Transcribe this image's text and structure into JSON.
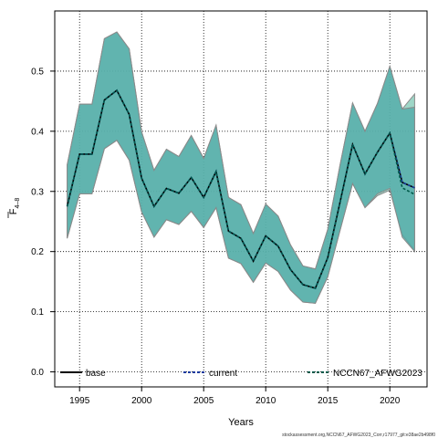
{
  "chart_data": {
    "type": "line",
    "title": "",
    "xlabel": "Years",
    "ylabel_main": "F",
    "ylabel_sub": "4–8",
    "xlim": [
      1993,
      2023
    ],
    "ylim": [
      -0.025,
      0.6
    ],
    "xticks": [
      1995,
      2000,
      2005,
      2010,
      2015,
      2020
    ],
    "yticks": [
      0.0,
      0.1,
      0.2,
      0.3,
      0.4,
      0.5
    ],
    "xtick_labels": [
      "1995",
      "2000",
      "2005",
      "2010",
      "2015",
      "2020"
    ],
    "ytick_labels": [
      "0.0",
      "0.1",
      "0.2",
      "0.3",
      "0.4",
      "0.5"
    ],
    "grid": true,
    "legend_position": "bottom",
    "x": [
      1994,
      1995,
      1996,
      1997,
      1998,
      1999,
      2000,
      2001,
      2002,
      2003,
      2004,
      2005,
      2006,
      2007,
      2008,
      2009,
      2010,
      2011,
      2012,
      2013,
      2014,
      2015,
      2016,
      2017,
      2018,
      2019,
      2020,
      2021,
      2022
    ],
    "series": [
      {
        "name": "base",
        "style": "solid",
        "color": "#000000",
        "values": [
          0.275,
          0.362,
          0.362,
          0.452,
          0.468,
          0.428,
          0.322,
          0.275,
          0.305,
          0.297,
          0.323,
          0.29,
          0.333,
          0.234,
          0.222,
          0.184,
          0.226,
          0.209,
          0.17,
          0.145,
          0.139,
          0.19,
          0.283,
          0.378,
          0.329,
          0.365,
          0.397,
          0.315,
          0.306
        ],
        "lower": [
          0.222,
          0.296,
          0.296,
          0.371,
          0.385,
          0.352,
          0.266,
          0.224,
          0.253,
          0.245,
          0.267,
          0.24,
          0.273,
          0.189,
          0.18,
          0.149,
          0.181,
          0.167,
          0.136,
          0.116,
          0.114,
          0.158,
          0.236,
          0.313,
          0.273,
          0.296,
          0.305,
          0.224,
          0.2
        ],
        "upper": [
          0.344,
          0.445,
          0.445,
          0.554,
          0.565,
          0.537,
          0.399,
          0.335,
          0.37,
          0.358,
          0.393,
          0.355,
          0.41,
          0.29,
          0.278,
          0.23,
          0.279,
          0.259,
          0.211,
          0.176,
          0.171,
          0.237,
          0.345,
          0.447,
          0.4,
          0.446,
          0.508,
          0.437,
          0.44
        ]
      },
      {
        "name": "current",
        "style": "dashed",
        "color": "#1a3a9e",
        "values": [
          0.275,
          0.362,
          0.362,
          0.452,
          0.468,
          0.428,
          0.322,
          0.275,
          0.305,
          0.297,
          0.323,
          0.29,
          0.333,
          0.234,
          0.222,
          0.184,
          0.226,
          0.209,
          0.17,
          0.145,
          0.139,
          0.19,
          0.283,
          0.378,
          0.329,
          0.365,
          0.397,
          0.315,
          0.306
        ]
      },
      {
        "name": "NCCN67_AFWG2023",
        "style": "dashed",
        "color": "#005a4a",
        "values": [
          0.275,
          0.362,
          0.362,
          0.452,
          0.468,
          0.428,
          0.322,
          0.275,
          0.305,
          0.297,
          0.323,
          0.29,
          0.333,
          0.234,
          0.222,
          0.184,
          0.226,
          0.209,
          0.17,
          0.145,
          0.139,
          0.19,
          0.283,
          0.378,
          0.329,
          0.365,
          0.397,
          0.306,
          0.295
        ],
        "lower": [
          0.222,
          0.296,
          0.296,
          0.371,
          0.385,
          0.352,
          0.266,
          0.224,
          0.253,
          0.245,
          0.267,
          0.24,
          0.273,
          0.189,
          0.18,
          0.149,
          0.181,
          0.167,
          0.136,
          0.116,
          0.114,
          0.158,
          0.236,
          0.313,
          0.273,
          0.293,
          0.302,
          0.228,
          0.202
        ],
        "upper": [
          0.344,
          0.445,
          0.445,
          0.554,
          0.565,
          0.537,
          0.399,
          0.335,
          0.37,
          0.358,
          0.393,
          0.355,
          0.41,
          0.29,
          0.278,
          0.23,
          0.279,
          0.259,
          0.211,
          0.176,
          0.171,
          0.237,
          0.345,
          0.447,
          0.4,
          0.446,
          0.508,
          0.437,
          0.462
        ]
      }
    ],
    "colors": {
      "band_base": "#4faaa8",
      "band_model": "#7dc8b4",
      "band_edge": "#8a8a8a"
    }
  },
  "footer": "stockassessment.org,NCCN67_AFWG2023_Corr,r17977_git:e38ae2b498f0"
}
